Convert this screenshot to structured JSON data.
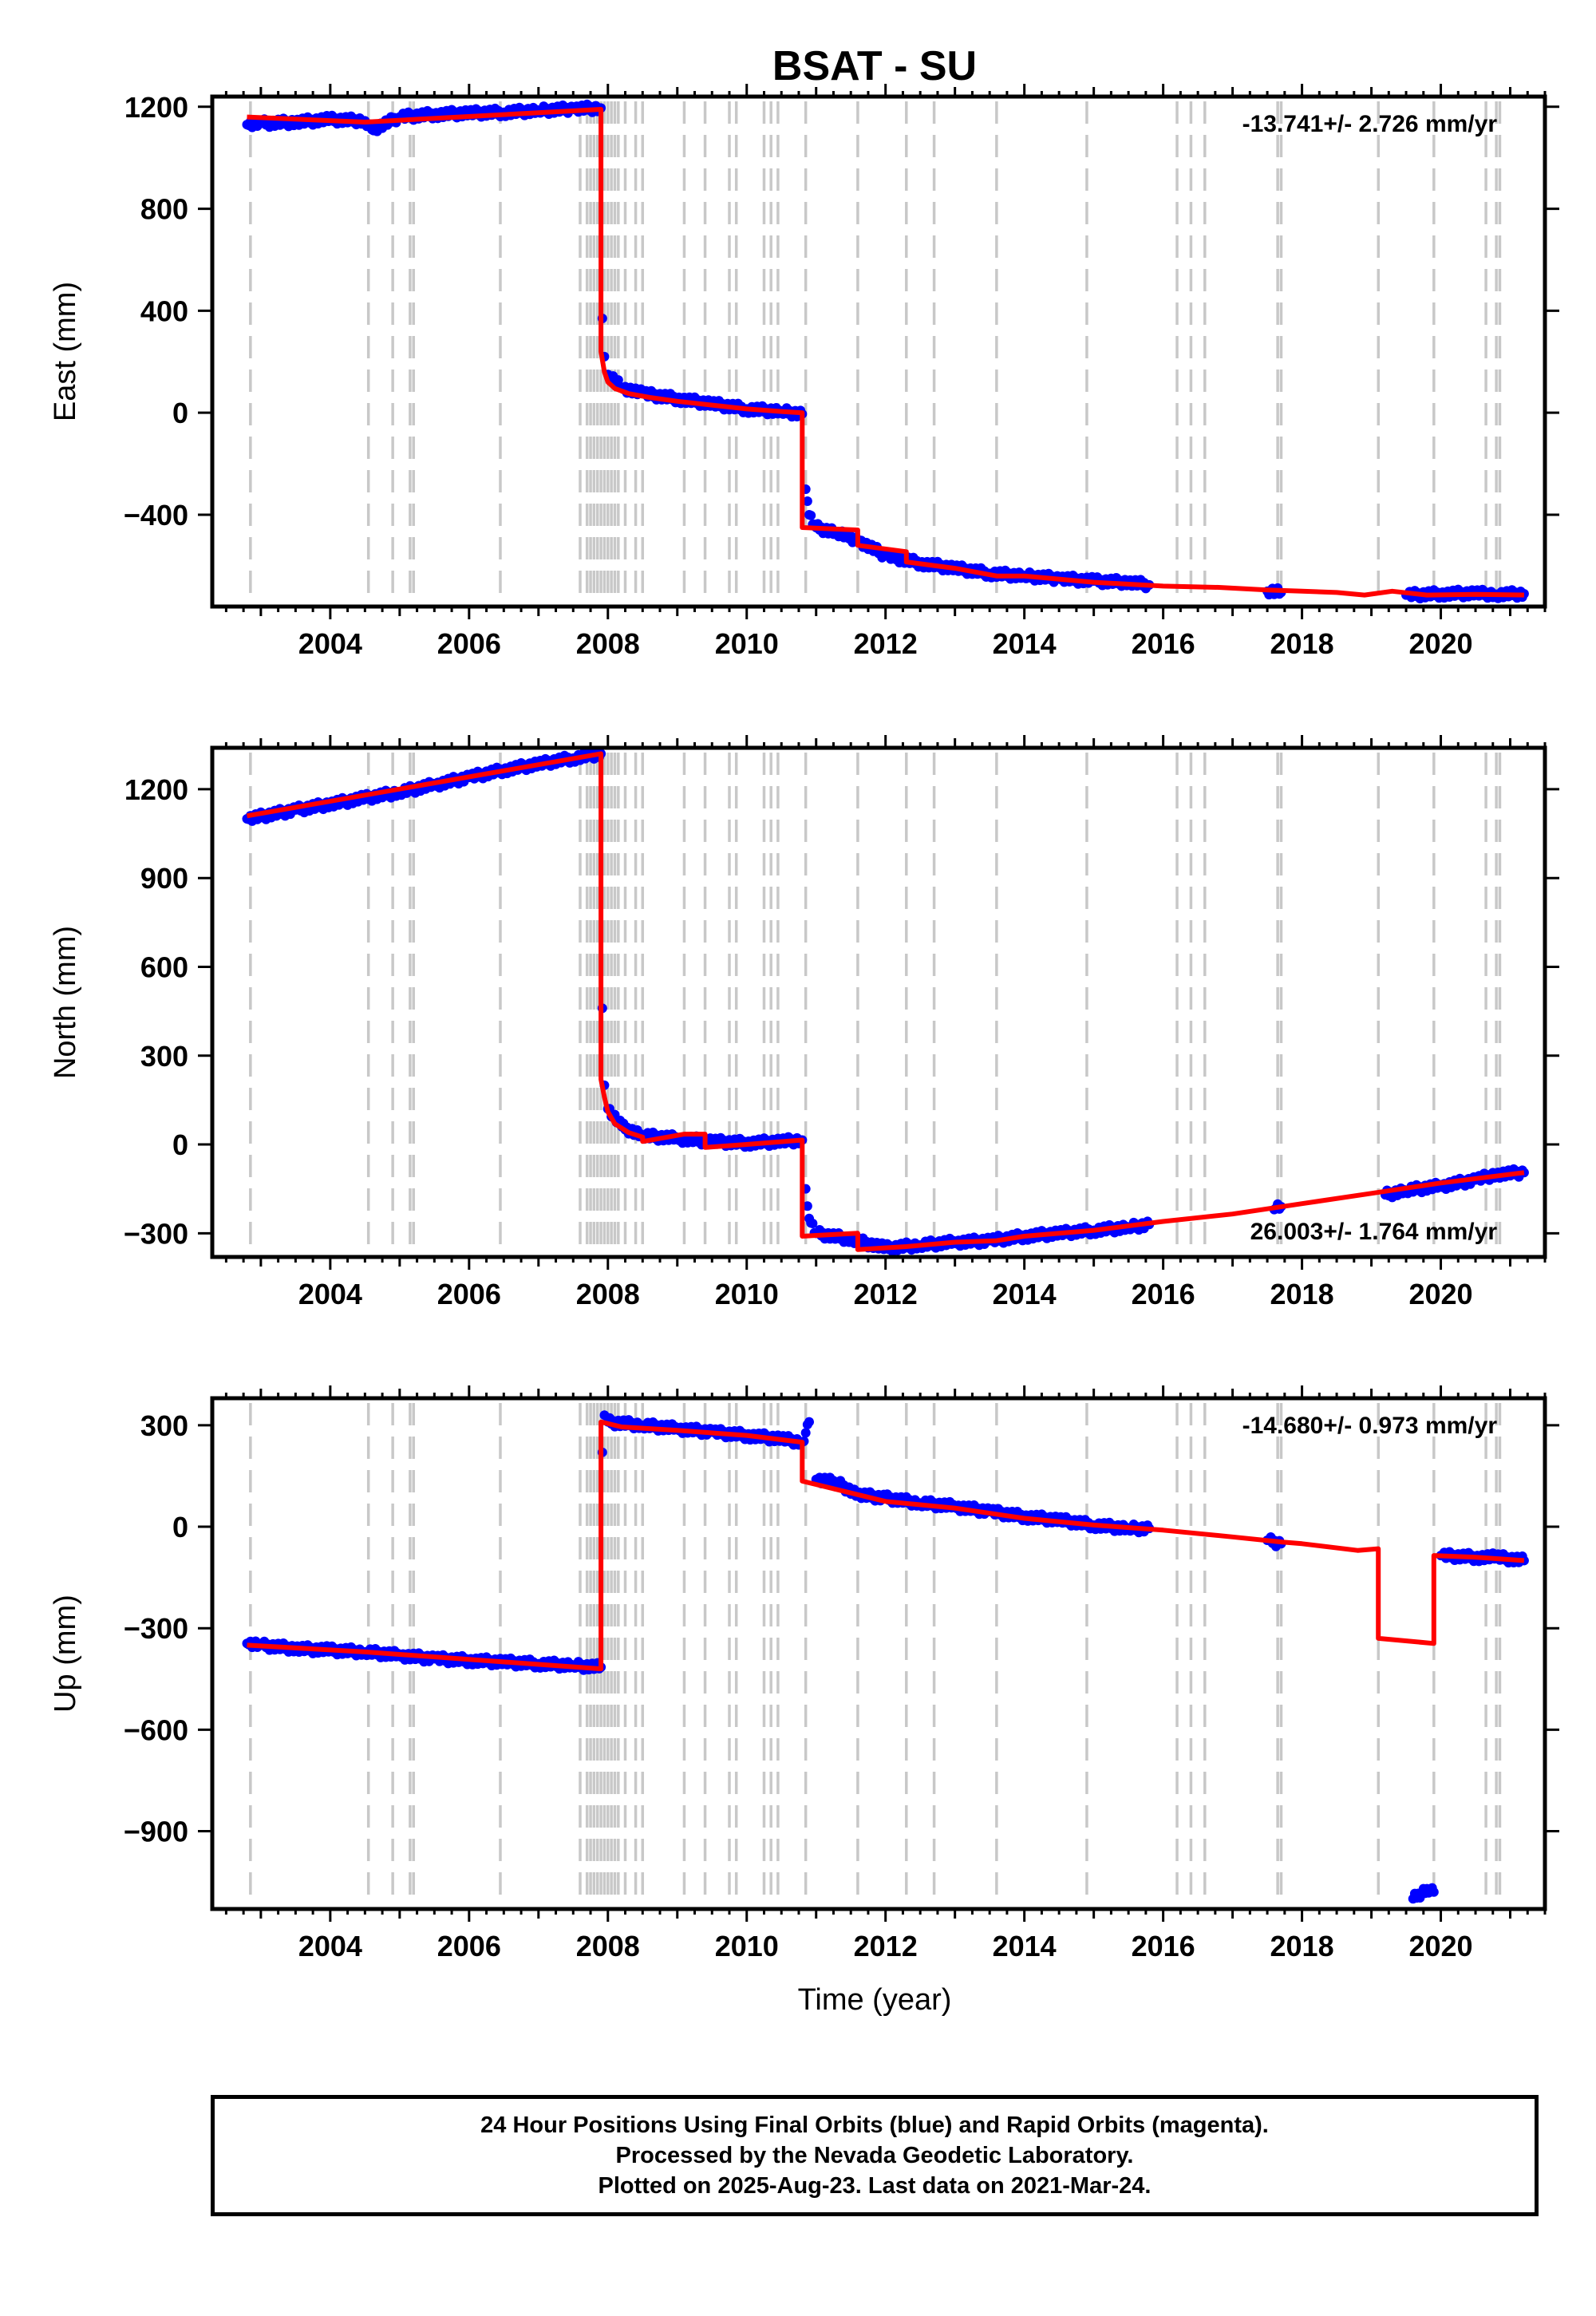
{
  "title": "BSAT - SU",
  "xlabel": "Time (year)",
  "footer": {
    "line1": "24 Hour Positions Using Final Orbits (blue) and Rapid Orbits (magenta).",
    "line2": "Processed by the Nevada Geodetic Laboratory.",
    "line3": "Plotted on 2025-Aug-23. Last data on 2021-Mar-24."
  },
  "colors": {
    "data": "#0000ff",
    "model": "#ff0000",
    "events": "#c8c8c8",
    "axes": "#000000"
  },
  "chart_data": [
    {
      "type": "scatter",
      "ylabel": "East (mm)",
      "rate": "-13.741+/- 2.726 mm/yr",
      "rate_position": "top-right",
      "xlim": [
        2002.3,
        2021.5
      ],
      "ylim": [
        -760,
        1240
      ],
      "xticks": [
        2004,
        2006,
        2008,
        2010,
        2012,
        2014,
        2016,
        2018,
        2020
      ],
      "yticks": [
        1200,
        800,
        400,
        0,
        -400
      ],
      "ytick_labels": [
        "1200",
        "800",
        "400",
        "0",
        "−400"
      ],
      "observations": {
        "x": [
          2002.8,
          2003.0,
          2003.5,
          2004.0,
          2004.5,
          2004.6,
          2005.0,
          2005.5,
          2006.0,
          2006.5,
          2007.0,
          2007.5,
          2007.9,
          2007.92,
          2007.95,
          2008.0,
          2008.2,
          2008.5,
          2009.0,
          2009.5,
          2010.0,
          2010.5,
          2010.8,
          2010.85,
          2010.9,
          2011.0,
          2011.3,
          2011.6,
          2012.0,
          2012.5,
          2013.0,
          2013.5,
          2014.0,
          2014.5,
          2015.0,
          2015.5,
          2015.8,
          2017.5,
          2017.7,
          2019.5,
          2020.0,
          2020.5,
          2020.8,
          2021.2
        ],
        "y": [
          1130,
          1135,
          1140,
          1150,
          1145,
          1110,
          1160,
          1170,
          1175,
          1178,
          1185,
          1192,
          1195,
          370,
          220,
          150,
          100,
          75,
          55,
          35,
          15,
          5,
          -5,
          -300,
          -400,
          -450,
          -470,
          -500,
          -560,
          -590,
          -610,
          -630,
          -640,
          -650,
          -660,
          -665,
          -675,
          -700,
          -705,
          -715,
          -710,
          -708,
          -712,
          -710
        ]
      },
      "model": {
        "x": [
          2002.8,
          2004.5,
          2007.9,
          2007.9,
          2007.95,
          2008.0,
          2008.1,
          2008.3,
          2008.6,
          2009.0,
          2009.5,
          2010.0,
          2010.5,
          2010.8,
          2010.8,
          2011.6,
          2011.6,
          2012.3,
          2012.3,
          2013.0,
          2013.6,
          2014.0,
          2015.0,
          2016.0,
          2016.8,
          2017.5,
          2018.0,
          2018.5,
          2018.9,
          2019.3,
          2019.8,
          2020.5,
          2021.2
        ],
        "y": [
          1160,
          1140,
          1190,
          240,
          160,
          120,
          95,
          75,
          60,
          45,
          30,
          15,
          5,
          0,
          -450,
          -460,
          -520,
          -545,
          -585,
          -610,
          -640,
          -640,
          -665,
          -680,
          -685,
          -695,
          -700,
          -705,
          -715,
          -700,
          -715,
          -712,
          -715
        ]
      },
      "events": [
        2002.85,
        2004.55,
        2004.9,
        2005.15,
        2005.2,
        2006.45,
        2007.6,
        2007.7,
        2007.75,
        2007.8,
        2007.85,
        2007.9,
        2007.95,
        2008.0,
        2008.05,
        2008.1,
        2008.15,
        2008.25,
        2008.4,
        2008.5,
        2009.1,
        2009.4,
        2009.75,
        2009.85,
        2010.25,
        2010.35,
        2010.45,
        2010.85,
        2011.6,
        2012.3,
        2012.7,
        2013.6,
        2014.9,
        2016.2,
        2016.4,
        2016.6,
        2017.65,
        2017.7,
        2019.1,
        2019.9,
        2020.65,
        2020.8,
        2020.85
      ]
    },
    {
      "type": "scatter",
      "ylabel": "North (mm)",
      "rate": "26.003+/- 1.764 mm/yr",
      "rate_position": "bottom-right",
      "xlim": [
        2002.3,
        2021.5
      ],
      "ylim": [
        -380,
        1340
      ],
      "xticks": [
        2004,
        2006,
        2008,
        2010,
        2012,
        2014,
        2016,
        2018,
        2020
      ],
      "yticks": [
        1200,
        900,
        600,
        300,
        0,
        -300
      ],
      "ytick_labels": [
        "1200",
        "900",
        "600",
        "300",
        "0",
        "−300"
      ],
      "observations": {
        "x": [
          2002.8,
          2003.5,
          2004.0,
          2004.5,
          2005.0,
          2005.5,
          2006.0,
          2006.5,
          2007.0,
          2007.5,
          2007.9,
          2007.92,
          2007.95,
          2008.0,
          2008.2,
          2008.5,
          2009.0,
          2009.5,
          2010.0,
          2010.5,
          2010.8,
          2010.85,
          2010.9,
          2011.0,
          2011.5,
          2012.0,
          2012.5,
          2013.0,
          2013.5,
          2014.0,
          2014.5,
          2015.0,
          2015.5,
          2015.8,
          2017.6,
          2017.7,
          2019.2,
          2019.5,
          2020.0,
          2020.5,
          2020.8,
          2021.2
        ],
        "y": [
          1100,
          1130,
          1150,
          1170,
          1190,
          1215,
          1240,
          1265,
          1285,
          1305,
          1320,
          460,
          200,
          120,
          60,
          30,
          20,
          10,
          5,
          10,
          15,
          -150,
          -250,
          -300,
          -320,
          -350,
          -340,
          -330,
          -325,
          -310,
          -300,
          -290,
          -280,
          -270,
          -220,
          -210,
          -170,
          -155,
          -140,
          -120,
          -100,
          -95
        ]
      },
      "model": {
        "x": [
          2002.8,
          2007.9,
          2007.9,
          2007.95,
          2008.0,
          2008.1,
          2008.3,
          2008.5,
          2008.5,
          2009.1,
          2009.4,
          2009.4,
          2010.0,
          2010.8,
          2010.8,
          2011.6,
          2011.6,
          2012.3,
          2013.0,
          2013.6,
          2014.0,
          2015.0,
          2016.0,
          2017.0,
          2018.0,
          2019.0,
          2020.0,
          2021.2
        ],
        "y": [
          1110,
          1320,
          220,
          160,
          110,
          70,
          40,
          25,
          10,
          35,
          35,
          -10,
          0,
          15,
          -310,
          -300,
          -355,
          -345,
          -330,
          -325,
          -310,
          -290,
          -260,
          -235,
          -200,
          -165,
          -130,
          -95
        ]
      },
      "events": [
        2002.85,
        2004.55,
        2004.9,
        2005.15,
        2005.2,
        2006.45,
        2007.6,
        2007.7,
        2007.75,
        2007.8,
        2007.85,
        2007.9,
        2007.95,
        2008.0,
        2008.05,
        2008.1,
        2008.15,
        2008.25,
        2008.4,
        2008.5,
        2009.1,
        2009.4,
        2009.75,
        2009.85,
        2010.25,
        2010.35,
        2010.45,
        2010.85,
        2011.6,
        2012.3,
        2012.7,
        2013.6,
        2014.9,
        2016.2,
        2016.4,
        2016.6,
        2017.65,
        2017.7,
        2019.1,
        2019.9,
        2020.65,
        2020.8,
        2020.85
      ]
    },
    {
      "type": "scatter",
      "ylabel": "Up (mm)",
      "rate": "-14.680+/- 0.973 mm/yr",
      "rate_position": "top-right",
      "xlim": [
        2002.3,
        2021.5
      ],
      "ylim": [
        -1130,
        380
      ],
      "xticks": [
        2004,
        2006,
        2008,
        2010,
        2012,
        2014,
        2016,
        2018,
        2020
      ],
      "yticks": [
        300,
        0,
        -300,
        -600,
        -900
      ],
      "ytick_labels": [
        "300",
        "0",
        "−300",
        "−600",
        "−900"
      ],
      "observations": {
        "x": [
          2002.8,
          2003.0,
          2003.5,
          2004.0,
          2004.5,
          2005.0,
          2005.5,
          2006.0,
          2006.5,
          2007.0,
          2007.5,
          2007.9,
          2007.92,
          2007.95,
          2008.0,
          2008.5,
          2009.0,
          2009.5,
          2010.0,
          2010.5,
          2010.8,
          2010.9,
          2011.0,
          2011.3,
          2011.6,
          2012.0,
          2012.5,
          2013.0,
          2013.5,
          2014.0,
          2014.5,
          2015.0,
          2015.5,
          2015.8,
          2017.5,
          2017.7,
          2019.6,
          2019.8,
          2019.9,
          2020.0,
          2020.5,
          2020.8,
          2021.2
        ],
        "y": [
          -345,
          -350,
          -360,
          -365,
          -370,
          -380,
          -390,
          -395,
          -400,
          -405,
          -410,
          -415,
          220,
          330,
          310,
          300,
          290,
          280,
          270,
          260,
          250,
          310,
          140,
          130,
          95,
          85,
          70,
          60,
          45,
          30,
          20,
          5,
          -5,
          -5,
          -40,
          -50,
          -1100,
          -1070,
          -1080,
          -85,
          -90,
          -90,
          -100
        ]
      },
      "model": {
        "x": [
          2002.8,
          2004.5,
          2007.9,
          2007.9,
          2008.2,
          2009.0,
          2010.0,
          2010.8,
          2010.8,
          2011.5,
          2012.0,
          2013.0,
          2014.0,
          2015.0,
          2016.0,
          2017.0,
          2017.7,
          2018.0,
          2018.8,
          2019.1,
          2019.1,
          2019.9,
          2019.9,
          2020.5,
          2021.2
        ],
        "y": [
          -350,
          -370,
          -420,
          310,
          295,
          285,
          270,
          250,
          135,
          100,
          75,
          55,
          25,
          5,
          -10,
          -30,
          -45,
          -50,
          -70,
          -65,
          -330,
          -345,
          -85,
          -90,
          -100
        ]
      },
      "events": [
        2002.85,
        2004.55,
        2004.9,
        2005.15,
        2005.2,
        2006.45,
        2007.6,
        2007.7,
        2007.75,
        2007.8,
        2007.85,
        2007.9,
        2007.95,
        2008.0,
        2008.05,
        2008.1,
        2008.15,
        2008.25,
        2008.4,
        2008.5,
        2009.1,
        2009.4,
        2009.75,
        2009.85,
        2010.25,
        2010.35,
        2010.45,
        2010.85,
        2011.6,
        2012.3,
        2012.7,
        2013.6,
        2014.9,
        2016.2,
        2016.4,
        2016.6,
        2017.65,
        2017.7,
        2019.1,
        2019.9,
        2020.65,
        2020.8,
        2020.85
      ]
    }
  ]
}
